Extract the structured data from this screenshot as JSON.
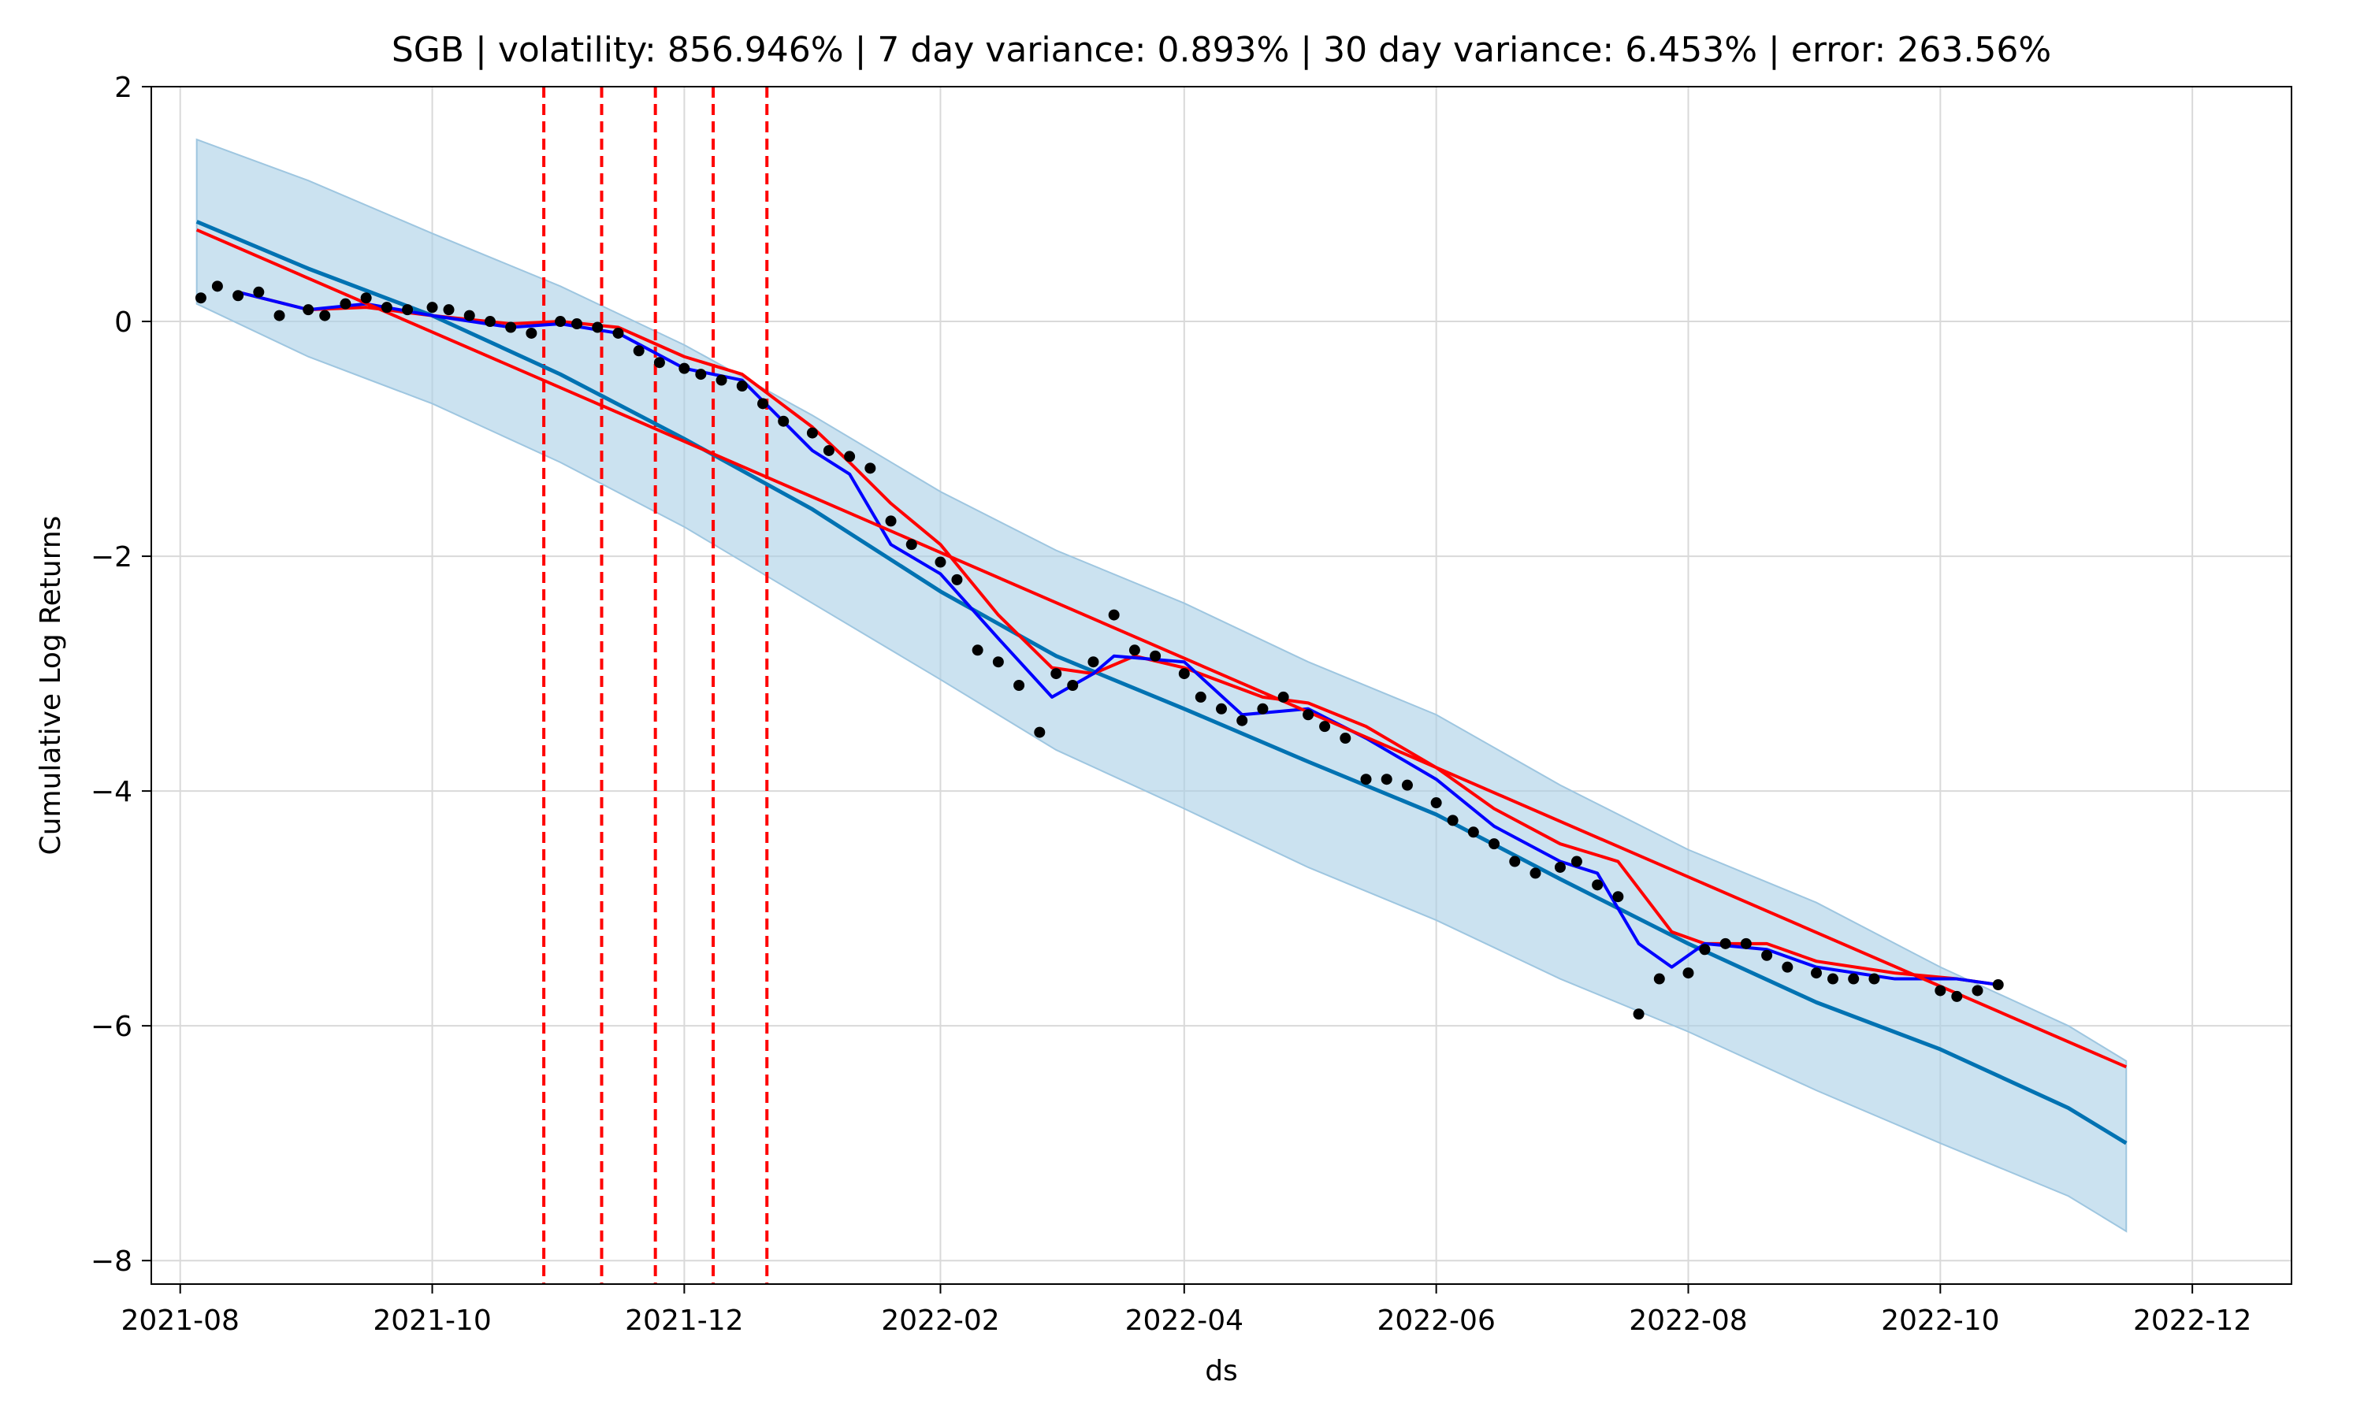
{
  "chart_data": {
    "type": "line",
    "title": "SGB | volatility: 856.946% | 7 day variance: 0.893% | 30 day variance: 6.453% | error: 263.56%",
    "xlabel": "ds",
    "ylabel": "Cumulative Log Returns",
    "x_range": [
      "2021-07-25",
      "2022-12-25"
    ],
    "ylim": [
      -8.2,
      2.0
    ],
    "grid": true,
    "x_ticks": [
      "2021-08",
      "2021-10",
      "2021-12",
      "2022-02",
      "2022-04",
      "2022-06",
      "2022-08",
      "2022-10",
      "2022-12"
    ],
    "y_ticks": [
      2,
      0,
      -2,
      -4,
      -6,
      -8
    ],
    "y_tick_labels": [
      "2",
      "0",
      "−2",
      "−4",
      "−6",
      "−8"
    ],
    "colors": {
      "observed": "#000000",
      "forecast": "#0072B2",
      "interval": "#a8cfe6",
      "ma_blue": "#0000ff",
      "red": "#ff0000"
    },
    "changepoints": [
      "2021-10-28",
      "2021-11-11",
      "2021-11-24",
      "2021-12-08",
      "2021-12-21"
    ],
    "series": [
      {
        "role": "forecast",
        "x": [
          "2021-08-05",
          "2021-09-01",
          "2021-10-01",
          "2021-11-01",
          "2021-12-01",
          "2022-01-01",
          "2022-02-01",
          "2022-03-01",
          "2022-04-01",
          "2022-05-01",
          "2022-06-01",
          "2022-07-01",
          "2022-08-01",
          "2022-09-01",
          "2022-10-01",
          "2022-11-01",
          "2022-11-15"
        ],
        "values": [
          0.85,
          0.45,
          0.05,
          -0.45,
          -1.0,
          -1.6,
          -2.3,
          -2.85,
          -3.3,
          -3.75,
          -4.2,
          -4.75,
          -5.3,
          -5.8,
          -6.2,
          -6.7,
          -7.0
        ]
      },
      {
        "role": "interval",
        "x": [
          "2021-08-05",
          "2021-09-01",
          "2021-10-01",
          "2021-11-01",
          "2021-12-01",
          "2022-01-01",
          "2022-02-01",
          "2022-03-01",
          "2022-04-01",
          "2022-05-01",
          "2022-06-01",
          "2022-07-01",
          "2022-08-01",
          "2022-09-01",
          "2022-10-01",
          "2022-11-01",
          "2022-11-15"
        ],
        "upper": [
          1.55,
          1.2,
          0.75,
          0.3,
          -0.2,
          -0.8,
          -1.45,
          -1.95,
          -2.4,
          -2.9,
          -3.35,
          -3.95,
          -4.5,
          -4.95,
          -5.5,
          -6.0,
          -6.3
        ],
        "lower": [
          0.15,
          -0.3,
          -0.7,
          -1.2,
          -1.75,
          -2.4,
          -3.05,
          -3.65,
          -4.15,
          -4.65,
          -5.1,
          -5.6,
          -6.05,
          -6.55,
          -7.0,
          -7.45,
          -7.75
        ]
      },
      {
        "role": "trend",
        "x": [
          "2021-08-05",
          "2022-11-15"
        ],
        "values": [
          0.78,
          -6.35
        ]
      },
      {
        "role": "ma_blue",
        "x": [
          "2021-08-15",
          "2021-09-01",
          "2021-09-15",
          "2021-10-01",
          "2021-10-20",
          "2021-11-01",
          "2021-11-15",
          "2021-12-01",
          "2021-12-15",
          "2022-01-01",
          "2022-01-10",
          "2022-01-20",
          "2022-02-01",
          "2022-02-15",
          "2022-02-28",
          "2022-03-10",
          "2022-03-15",
          "2022-04-01",
          "2022-04-15",
          "2022-05-01",
          "2022-05-15",
          "2022-06-01",
          "2022-06-15",
          "2022-07-01",
          "2022-07-10",
          "2022-07-20",
          "2022-07-28",
          "2022-08-05",
          "2022-08-20",
          "2022-09-01",
          "2022-09-20",
          "2022-10-05",
          "2022-10-15"
        ],
        "values": [
          0.25,
          0.1,
          0.15,
          0.05,
          -0.05,
          -0.02,
          -0.1,
          -0.4,
          -0.5,
          -1.1,
          -1.3,
          -1.9,
          -2.15,
          -2.7,
          -3.2,
          -3.0,
          -2.85,
          -2.9,
          -3.35,
          -3.3,
          -3.55,
          -3.9,
          -4.3,
          -4.6,
          -4.7,
          -5.3,
          -5.5,
          -5.3,
          -5.35,
          -5.5,
          -5.6,
          -5.6,
          -5.65
        ]
      },
      {
        "role": "ma_red",
        "x": [
          "2021-08-15",
          "2021-09-01",
          "2021-09-15",
          "2021-10-01",
          "2021-10-20",
          "2021-11-01",
          "2021-11-15",
          "2021-12-01",
          "2021-12-15",
          "2022-01-01",
          "2022-01-10",
          "2022-01-20",
          "2022-02-01",
          "2022-02-15",
          "2022-02-28",
          "2022-03-10",
          "2022-03-20",
          "2022-04-01",
          "2022-04-20",
          "2022-05-01",
          "2022-05-15",
          "2022-06-01",
          "2022-06-15",
          "2022-07-01",
          "2022-07-15",
          "2022-07-28",
          "2022-08-05",
          "2022-08-20",
          "2022-09-01",
          "2022-09-20",
          "2022-10-05",
          "2022-10-15"
        ],
        "values": [
          0.25,
          0.1,
          0.12,
          0.05,
          -0.02,
          0.0,
          -0.05,
          -0.3,
          -0.45,
          -0.9,
          -1.2,
          -1.55,
          -1.9,
          -2.5,
          -2.95,
          -3.0,
          -2.85,
          -2.95,
          -3.2,
          -3.25,
          -3.45,
          -3.8,
          -4.15,
          -4.45,
          -4.6,
          -5.2,
          -5.3,
          -5.3,
          -5.45,
          -5.55,
          -5.6,
          -5.65
        ]
      },
      {
        "role": "observed",
        "x": [
          "2021-08-06",
          "2021-08-10",
          "2021-08-15",
          "2021-08-20",
          "2021-08-25",
          "2021-09-01",
          "2021-09-05",
          "2021-09-10",
          "2021-09-15",
          "2021-09-20",
          "2021-09-25",
          "2021-10-01",
          "2021-10-05",
          "2021-10-10",
          "2021-10-15",
          "2021-10-20",
          "2021-10-25",
          "2021-11-01",
          "2021-11-05",
          "2021-11-10",
          "2021-11-15",
          "2021-11-20",
          "2021-11-25",
          "2021-12-01",
          "2021-12-05",
          "2021-12-10",
          "2021-12-15",
          "2021-12-20",
          "2021-12-25",
          "2022-01-01",
          "2022-01-05",
          "2022-01-10",
          "2022-01-15",
          "2022-01-20",
          "2022-01-25",
          "2022-02-01",
          "2022-02-05",
          "2022-02-10",
          "2022-02-15",
          "2022-02-20",
          "2022-02-25",
          "2022-03-01",
          "2022-03-05",
          "2022-03-10",
          "2022-03-15",
          "2022-03-20",
          "2022-03-25",
          "2022-04-01",
          "2022-04-05",
          "2022-04-10",
          "2022-04-15",
          "2022-04-20",
          "2022-04-25",
          "2022-05-01",
          "2022-05-05",
          "2022-05-10",
          "2022-05-15",
          "2022-05-20",
          "2022-05-25",
          "2022-06-01",
          "2022-06-05",
          "2022-06-10",
          "2022-06-15",
          "2022-06-20",
          "2022-06-25",
          "2022-07-01",
          "2022-07-05",
          "2022-07-10",
          "2022-07-15",
          "2022-07-20",
          "2022-07-25",
          "2022-08-01",
          "2022-08-05",
          "2022-08-10",
          "2022-08-15",
          "2022-08-20",
          "2022-08-25",
          "2022-09-01",
          "2022-09-05",
          "2022-09-10",
          "2022-09-15",
          "2022-10-01",
          "2022-10-05",
          "2022-10-10",
          "2022-10-15"
        ],
        "values": [
          0.2,
          0.3,
          0.22,
          0.25,
          0.05,
          0.1,
          0.05,
          0.15,
          0.2,
          0.12,
          0.1,
          0.12,
          0.1,
          0.05,
          0.0,
          -0.05,
          -0.1,
          0.0,
          -0.02,
          -0.05,
          -0.1,
          -0.25,
          -0.35,
          -0.4,
          -0.45,
          -0.5,
          -0.55,
          -0.7,
          -0.85,
          -0.95,
          -1.1,
          -1.15,
          -1.25,
          -1.7,
          -1.9,
          -2.05,
          -2.2,
          -2.8,
          -2.9,
          -3.1,
          -3.5,
          -3.0,
          -3.1,
          -2.9,
          -2.5,
          -2.8,
          -2.85,
          -3.0,
          -3.2,
          -3.3,
          -3.4,
          -3.3,
          -3.2,
          -3.35,
          -3.45,
          -3.55,
          -3.9,
          -3.9,
          -3.95,
          -4.1,
          -4.25,
          -4.35,
          -4.45,
          -4.6,
          -4.7,
          -4.65,
          -4.6,
          -4.8,
          -4.9,
          -5.9,
          -5.6,
          -5.55,
          -5.35,
          -5.3,
          -5.3,
          -5.4,
          -5.5,
          -5.55,
          -5.6,
          -5.6,
          -5.6,
          -5.7,
          -5.75,
          -5.7,
          -5.65
        ]
      }
    ]
  }
}
